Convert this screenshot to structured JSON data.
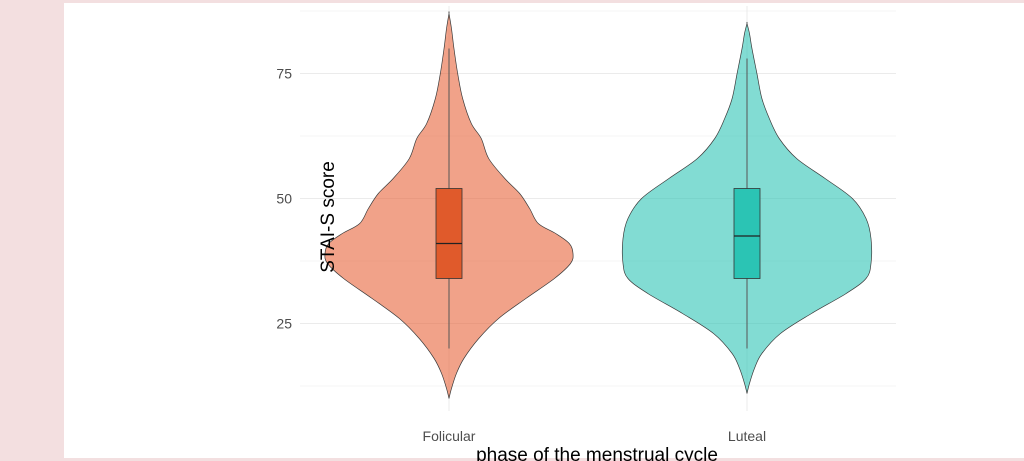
{
  "chart_data": {
    "type": "violin",
    "title": "",
    "xlabel": "phase of the menstrual cycle",
    "ylabel": "STAI-S score",
    "ylim": [
      7.5,
      88.5
    ],
    "yticks": [
      25,
      50,
      75
    ],
    "grid": true,
    "legend": "none",
    "categories": [
      "Folicular",
      "Luteal"
    ],
    "groups": [
      {
        "category": "Folicular",
        "fill": "#e8643a",
        "box_fill": "#e05a2b",
        "violin_alpha": 0.6,
        "box": {
          "whisker_low": 20,
          "q1": 34,
          "median": 41,
          "q3": 52,
          "whisker_high": 80
        },
        "density_profile": [
          [
            10,
            0.0
          ],
          [
            12,
            0.02
          ],
          [
            15,
            0.06
          ],
          [
            18,
            0.12
          ],
          [
            22,
            0.24
          ],
          [
            26,
            0.4
          ],
          [
            30,
            0.62
          ],
          [
            34,
            0.85
          ],
          [
            37,
            0.98
          ],
          [
            39,
            1.0
          ],
          [
            41,
            0.97
          ],
          [
            43,
            0.86
          ],
          [
            45,
            0.72
          ],
          [
            48,
            0.65
          ],
          [
            51,
            0.57
          ],
          [
            54,
            0.45
          ],
          [
            58,
            0.32
          ],
          [
            62,
            0.26
          ],
          [
            65,
            0.18
          ],
          [
            70,
            0.11
          ],
          [
            75,
            0.07
          ],
          [
            80,
            0.04
          ],
          [
            84,
            0.02
          ],
          [
            87,
            0.0
          ]
        ]
      },
      {
        "category": "Luteal",
        "fill": "#2ec4b6",
        "box_fill": "#2bc4b4",
        "violin_alpha": 0.6,
        "box": {
          "whisker_low": 20,
          "q1": 34,
          "median": 42.5,
          "q3": 52,
          "whisker_high": 78
        },
        "density_profile": [
          [
            11,
            0.0
          ],
          [
            13,
            0.02
          ],
          [
            16,
            0.06
          ],
          [
            19,
            0.12
          ],
          [
            23,
            0.27
          ],
          [
            27,
            0.52
          ],
          [
            31,
            0.8
          ],
          [
            34,
            0.96
          ],
          [
            37,
            1.0
          ],
          [
            42,
            1.0
          ],
          [
            46,
            0.96
          ],
          [
            50,
            0.85
          ],
          [
            54,
            0.63
          ],
          [
            58,
            0.4
          ],
          [
            62,
            0.26
          ],
          [
            66,
            0.18
          ],
          [
            70,
            0.12
          ],
          [
            75,
            0.08
          ],
          [
            80,
            0.04
          ],
          [
            83,
            0.02
          ],
          [
            85,
            0.0
          ]
        ]
      }
    ]
  }
}
